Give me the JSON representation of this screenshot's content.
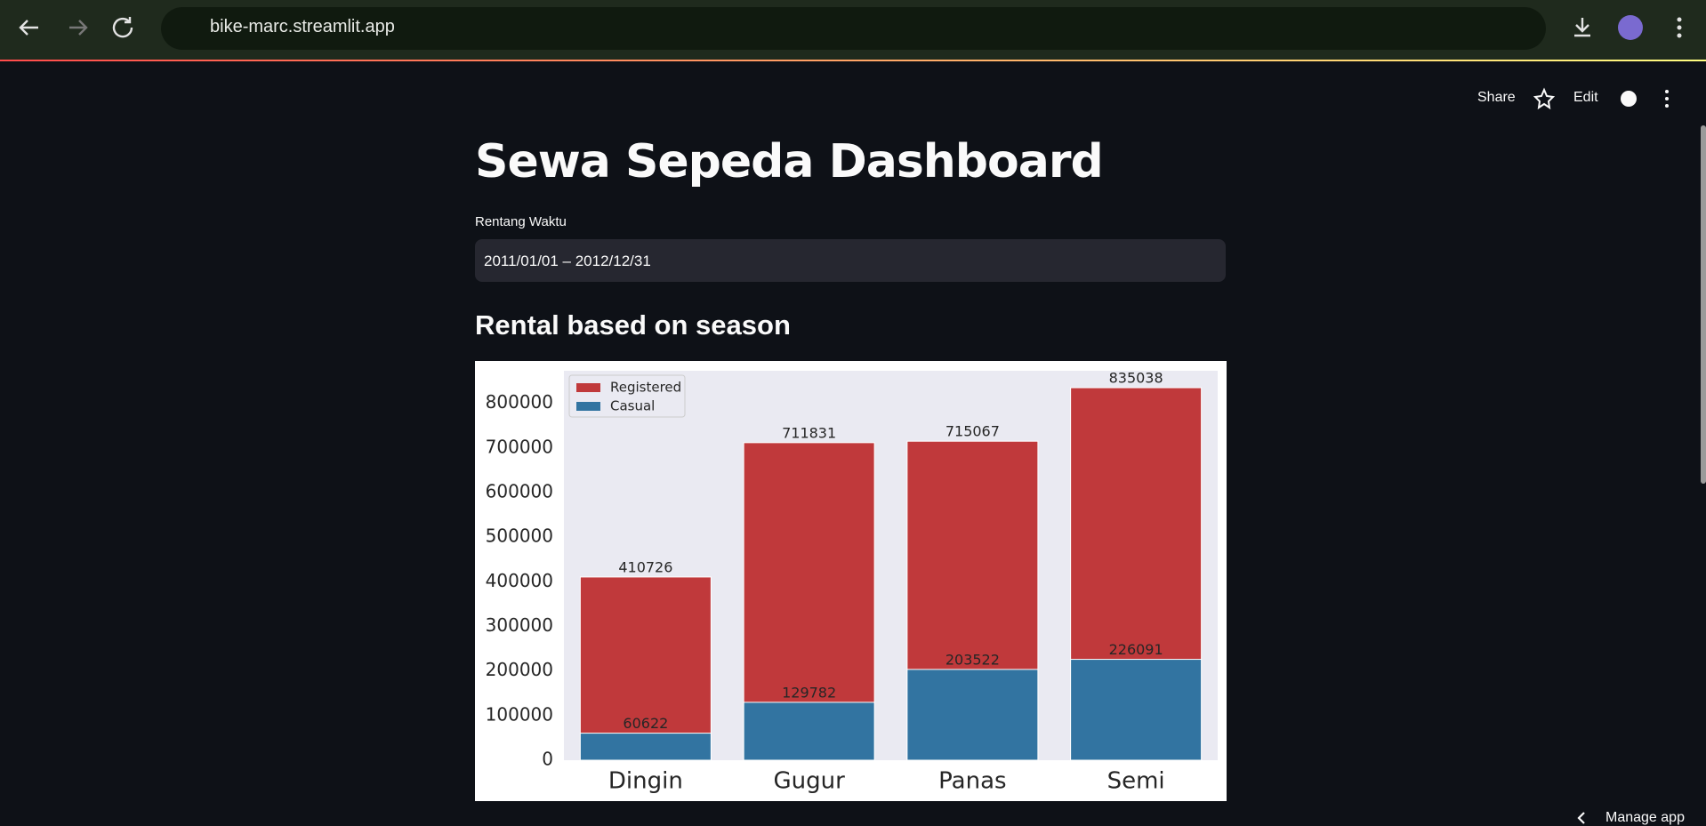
{
  "browser": {
    "url": "bike-marc.streamlit.app"
  },
  "header": {
    "actions": [
      "Share",
      "Edit"
    ]
  },
  "title": "Sewa Sepeda Dashboard",
  "date_input": {
    "label": "Rentang Waktu",
    "value": "2011/01/01 – 2012/12/31"
  },
  "subheader": "Rental based on season",
  "chart_data": {
    "type": "bar",
    "categories": [
      "Dingin",
      "Gugur",
      "Panas",
      "Semi"
    ],
    "series": [
      {
        "name": "Registered",
        "color": "#c0393b",
        "values": [
          410726,
          711831,
          715067,
          835038
        ]
      },
      {
        "name": "Casual",
        "color": "#3274a1",
        "values": [
          60622,
          129782,
          203522,
          226091
        ]
      }
    ],
    "ylim": [
      0,
      873000
    ],
    "yticks": [
      0,
      100000,
      200000,
      300000,
      400000,
      500000,
      600000,
      700000,
      800000
    ],
    "grid": false,
    "legend": "upper left"
  },
  "footer": {
    "manage": "Manage app"
  }
}
